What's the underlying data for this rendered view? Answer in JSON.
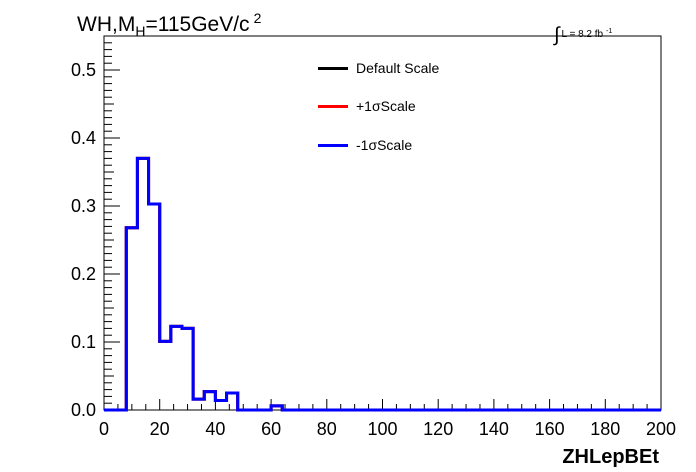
{
  "title": {
    "prefix": "WH,M",
    "sub": "H",
    "mid": "=115GeV/c",
    "sup": "2"
  },
  "luminosity": {
    "symbol": "∫",
    "text": "L = 8.2 fb",
    "sup": "-1"
  },
  "legend": [
    {
      "label": "Default Scale",
      "color": "#000000"
    },
    {
      "label": "+1σScale",
      "color": "#ff0000"
    },
    {
      "label": "-1σScale",
      "color": "#0000ff"
    }
  ],
  "chart_data": {
    "type": "line",
    "style": "step-histogram",
    "xlabel": "ZHLepBEt",
    "ylabel": "",
    "xlim": [
      0,
      200
    ],
    "ylim": [
      0,
      0.55
    ],
    "x_ticks": [
      0,
      20,
      40,
      60,
      80,
      100,
      120,
      140,
      160,
      180,
      200
    ],
    "y_ticks": [
      0.0,
      0.1,
      0.2,
      0.3,
      0.4,
      0.5
    ],
    "y_tick_labels": [
      "0.0",
      "0.1",
      "0.2",
      "0.3",
      "0.4",
      "0.5"
    ],
    "bin_edges": [
      0,
      4,
      8,
      12,
      16,
      20,
      24,
      28,
      32,
      36,
      40,
      44,
      48,
      52,
      56,
      60,
      64,
      68,
      72,
      76,
      80,
      84,
      88,
      92,
      96,
      100,
      104,
      108,
      112,
      116,
      120,
      124,
      128,
      132,
      136,
      140,
      144,
      148,
      152,
      156,
      160,
      164,
      168,
      172,
      176,
      180,
      184,
      188,
      192,
      196,
      200
    ],
    "series": [
      {
        "name": "Default Scale",
        "color": "#000000",
        "values": [
          0,
          0,
          0.268,
          0.37,
          0.303,
          0.101,
          0.123,
          0.12,
          0.016,
          0.027,
          0.014,
          0.025,
          0,
          0,
          0,
          0.006,
          0,
          0,
          0,
          0,
          0,
          0,
          0,
          0,
          0,
          0,
          0,
          0,
          0,
          0,
          0,
          0,
          0,
          0,
          0,
          0,
          0,
          0,
          0,
          0,
          0,
          0,
          0,
          0,
          0,
          0,
          0,
          0,
          0,
          0
        ]
      },
      {
        "name": "+1σScale",
        "color": "#ff0000",
        "values": [
          0,
          0,
          0.268,
          0.37,
          0.303,
          0.101,
          0.123,
          0.12,
          0.016,
          0.027,
          0.014,
          0.025,
          0,
          0,
          0,
          0.006,
          0,
          0,
          0,
          0,
          0,
          0,
          0,
          0,
          0,
          0,
          0,
          0,
          0,
          0,
          0,
          0,
          0,
          0,
          0,
          0,
          0,
          0,
          0,
          0,
          0,
          0,
          0,
          0,
          0,
          0,
          0,
          0,
          0,
          0
        ]
      },
      {
        "name": "-1σScale",
        "color": "#0000ff",
        "values": [
          0,
          0,
          0.268,
          0.37,
          0.303,
          0.101,
          0.123,
          0.12,
          0.016,
          0.027,
          0.014,
          0.025,
          0,
          0,
          0,
          0.006,
          0,
          0,
          0,
          0,
          0,
          0,
          0,
          0,
          0,
          0,
          0,
          0,
          0,
          0,
          0,
          0,
          0,
          0,
          0,
          0,
          0,
          0,
          0,
          0,
          0,
          0,
          0,
          0,
          0,
          0,
          0,
          0,
          0,
          0
        ]
      }
    ]
  }
}
